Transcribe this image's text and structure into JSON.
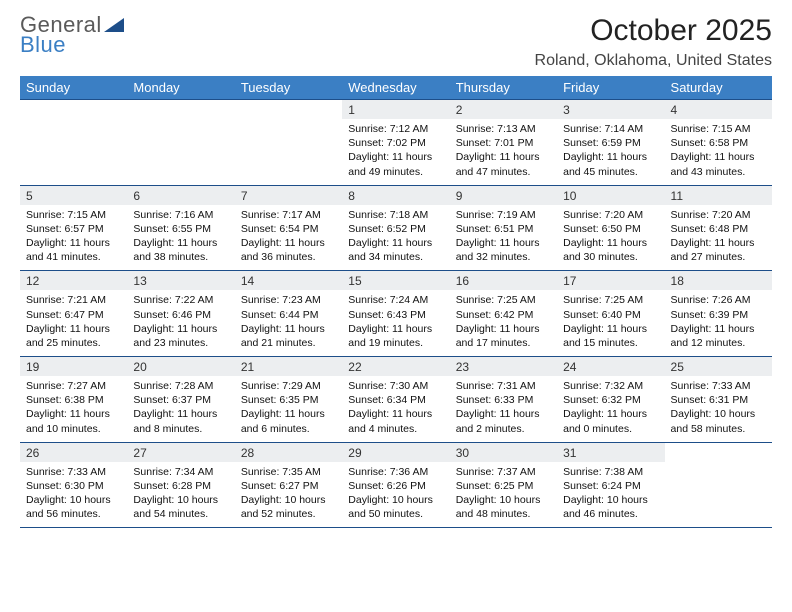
{
  "brand": {
    "line1": "General",
    "line2": "Blue",
    "accent_color": "#3b7fc4",
    "gray": "#5a5a5a"
  },
  "header": {
    "title": "October 2025",
    "location": "Roland, Oklahoma, United States"
  },
  "colors": {
    "header_bg": "#3b7fc4",
    "header_text": "#ffffff",
    "daynum_bg": "#eceef0",
    "rule": "#1d4e89",
    "body_bg": "#ffffff"
  },
  "weekdays": [
    "Sunday",
    "Monday",
    "Tuesday",
    "Wednesday",
    "Thursday",
    "Friday",
    "Saturday"
  ],
  "weeks": [
    [
      null,
      null,
      null,
      {
        "n": "1",
        "sunrise": "7:12 AM",
        "sunset": "7:02 PM",
        "daylight": "11 hours and 49 minutes."
      },
      {
        "n": "2",
        "sunrise": "7:13 AM",
        "sunset": "7:01 PM",
        "daylight": "11 hours and 47 minutes."
      },
      {
        "n": "3",
        "sunrise": "7:14 AM",
        "sunset": "6:59 PM",
        "daylight": "11 hours and 45 minutes."
      },
      {
        "n": "4",
        "sunrise": "7:15 AM",
        "sunset": "6:58 PM",
        "daylight": "11 hours and 43 minutes."
      }
    ],
    [
      {
        "n": "5",
        "sunrise": "7:15 AM",
        "sunset": "6:57 PM",
        "daylight": "11 hours and 41 minutes."
      },
      {
        "n": "6",
        "sunrise": "7:16 AM",
        "sunset": "6:55 PM",
        "daylight": "11 hours and 38 minutes."
      },
      {
        "n": "7",
        "sunrise": "7:17 AM",
        "sunset": "6:54 PM",
        "daylight": "11 hours and 36 minutes."
      },
      {
        "n": "8",
        "sunrise": "7:18 AM",
        "sunset": "6:52 PM",
        "daylight": "11 hours and 34 minutes."
      },
      {
        "n": "9",
        "sunrise": "7:19 AM",
        "sunset": "6:51 PM",
        "daylight": "11 hours and 32 minutes."
      },
      {
        "n": "10",
        "sunrise": "7:20 AM",
        "sunset": "6:50 PM",
        "daylight": "11 hours and 30 minutes."
      },
      {
        "n": "11",
        "sunrise": "7:20 AM",
        "sunset": "6:48 PM",
        "daylight": "11 hours and 27 minutes."
      }
    ],
    [
      {
        "n": "12",
        "sunrise": "7:21 AM",
        "sunset": "6:47 PM",
        "daylight": "11 hours and 25 minutes."
      },
      {
        "n": "13",
        "sunrise": "7:22 AM",
        "sunset": "6:46 PM",
        "daylight": "11 hours and 23 minutes."
      },
      {
        "n": "14",
        "sunrise": "7:23 AM",
        "sunset": "6:44 PM",
        "daylight": "11 hours and 21 minutes."
      },
      {
        "n": "15",
        "sunrise": "7:24 AM",
        "sunset": "6:43 PM",
        "daylight": "11 hours and 19 minutes."
      },
      {
        "n": "16",
        "sunrise": "7:25 AM",
        "sunset": "6:42 PM",
        "daylight": "11 hours and 17 minutes."
      },
      {
        "n": "17",
        "sunrise": "7:25 AM",
        "sunset": "6:40 PM",
        "daylight": "11 hours and 15 minutes."
      },
      {
        "n": "18",
        "sunrise": "7:26 AM",
        "sunset": "6:39 PM",
        "daylight": "11 hours and 12 minutes."
      }
    ],
    [
      {
        "n": "19",
        "sunrise": "7:27 AM",
        "sunset": "6:38 PM",
        "daylight": "11 hours and 10 minutes."
      },
      {
        "n": "20",
        "sunrise": "7:28 AM",
        "sunset": "6:37 PM",
        "daylight": "11 hours and 8 minutes."
      },
      {
        "n": "21",
        "sunrise": "7:29 AM",
        "sunset": "6:35 PM",
        "daylight": "11 hours and 6 minutes."
      },
      {
        "n": "22",
        "sunrise": "7:30 AM",
        "sunset": "6:34 PM",
        "daylight": "11 hours and 4 minutes."
      },
      {
        "n": "23",
        "sunrise": "7:31 AM",
        "sunset": "6:33 PM",
        "daylight": "11 hours and 2 minutes."
      },
      {
        "n": "24",
        "sunrise": "7:32 AM",
        "sunset": "6:32 PM",
        "daylight": "11 hours and 0 minutes."
      },
      {
        "n": "25",
        "sunrise": "7:33 AM",
        "sunset": "6:31 PM",
        "daylight": "10 hours and 58 minutes."
      }
    ],
    [
      {
        "n": "26",
        "sunrise": "7:33 AM",
        "sunset": "6:30 PM",
        "daylight": "10 hours and 56 minutes."
      },
      {
        "n": "27",
        "sunrise": "7:34 AM",
        "sunset": "6:28 PM",
        "daylight": "10 hours and 54 minutes."
      },
      {
        "n": "28",
        "sunrise": "7:35 AM",
        "sunset": "6:27 PM",
        "daylight": "10 hours and 52 minutes."
      },
      {
        "n": "29",
        "sunrise": "7:36 AM",
        "sunset": "6:26 PM",
        "daylight": "10 hours and 50 minutes."
      },
      {
        "n": "30",
        "sunrise": "7:37 AM",
        "sunset": "6:25 PM",
        "daylight": "10 hours and 48 minutes."
      },
      {
        "n": "31",
        "sunrise": "7:38 AM",
        "sunset": "6:24 PM",
        "daylight": "10 hours and 46 minutes."
      },
      null
    ]
  ],
  "labels": {
    "sunrise": "Sunrise:",
    "sunset": "Sunset:",
    "daylight": "Daylight:"
  }
}
